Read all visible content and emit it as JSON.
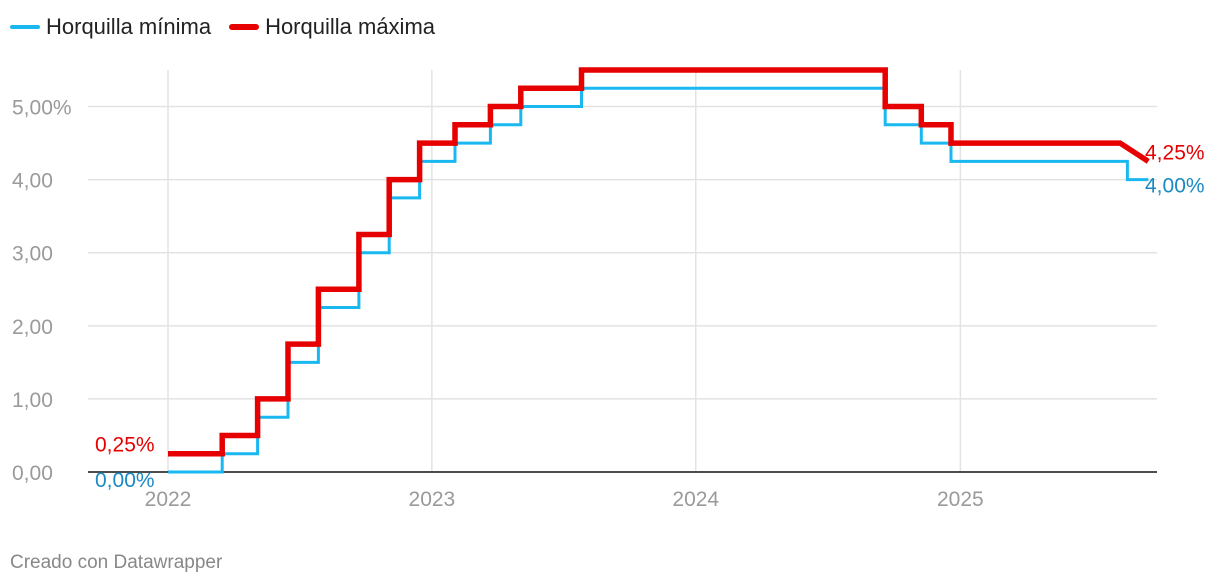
{
  "chart_data": {
    "type": "line",
    "title": "",
    "xlabel": "",
    "ylabel": "",
    "x_tick_labels": [
      "2022",
      "2023",
      "2024",
      "2025"
    ],
    "y_ticks": [
      0,
      1,
      2,
      3,
      4,
      5
    ],
    "y_tick_labels": [
      "0,00",
      "1,00",
      "2,00",
      "3,00",
      "4,00",
      "5,00%"
    ],
    "ylim": [
      0,
      5.5
    ],
    "xlim": [
      "2022-01-01",
      "2025-09-30"
    ],
    "grid": true,
    "legend_position": "top-left",
    "series": [
      {
        "name": "Horquilla mínima",
        "color": "#1ab8f0",
        "end_label": "4,00%",
        "start_label": "0,00%",
        "label_color": "#1a8ac4",
        "points": [
          [
            "2022-01-01",
            0
          ],
          [
            "2022-03-17",
            0
          ],
          [
            "2022-03-17",
            0.25
          ],
          [
            "2022-05-05",
            0.25
          ],
          [
            "2022-05-05",
            0.75
          ],
          [
            "2022-06-16",
            0.75
          ],
          [
            "2022-06-16",
            1.5
          ],
          [
            "2022-07-28",
            1.5
          ],
          [
            "2022-07-28",
            2.25
          ],
          [
            "2022-09-22",
            2.25
          ],
          [
            "2022-09-22",
            3.0
          ],
          [
            "2022-11-03",
            3.0
          ],
          [
            "2022-11-03",
            3.75
          ],
          [
            "2022-12-15",
            3.75
          ],
          [
            "2022-12-15",
            4.25
          ],
          [
            "2023-02-02",
            4.25
          ],
          [
            "2023-02-02",
            4.5
          ],
          [
            "2023-03-23",
            4.5
          ],
          [
            "2023-03-23",
            4.75
          ],
          [
            "2023-05-04",
            4.75
          ],
          [
            "2023-05-04",
            5.0
          ],
          [
            "2023-07-27",
            5.0
          ],
          [
            "2023-07-27",
            5.25
          ],
          [
            "2024-09-19",
            5.25
          ],
          [
            "2024-09-19",
            4.75
          ],
          [
            "2024-11-08",
            4.75
          ],
          [
            "2024-11-08",
            4.5
          ],
          [
            "2024-12-19",
            4.5
          ],
          [
            "2024-12-19",
            4.25
          ],
          [
            "2025-08-20",
            4.25
          ],
          [
            "2025-08-20",
            4.0
          ],
          [
            "2025-09-18",
            4.0
          ]
        ]
      },
      {
        "name": "Horquilla máxima",
        "color": "#e60000",
        "end_label": "4,25%",
        "start_label": "0,25%",
        "label_color": "#e60000",
        "points": [
          [
            "2022-01-01",
            0.25
          ],
          [
            "2022-03-17",
            0.25
          ],
          [
            "2022-03-17",
            0.5
          ],
          [
            "2022-05-05",
            0.5
          ],
          [
            "2022-05-05",
            1.0
          ],
          [
            "2022-06-16",
            1.0
          ],
          [
            "2022-06-16",
            1.75
          ],
          [
            "2022-07-28",
            1.75
          ],
          [
            "2022-07-28",
            2.5
          ],
          [
            "2022-09-22",
            2.5
          ],
          [
            "2022-09-22",
            3.25
          ],
          [
            "2022-11-03",
            3.25
          ],
          [
            "2022-11-03",
            4.0
          ],
          [
            "2022-12-15",
            4.0
          ],
          [
            "2022-12-15",
            4.5
          ],
          [
            "2023-02-02",
            4.5
          ],
          [
            "2023-02-02",
            4.75
          ],
          [
            "2023-03-23",
            4.75
          ],
          [
            "2023-03-23",
            5.0
          ],
          [
            "2023-05-04",
            5.0
          ],
          [
            "2023-05-04",
            5.25
          ],
          [
            "2023-07-27",
            5.25
          ],
          [
            "2023-07-27",
            5.5
          ],
          [
            "2024-09-19",
            5.5
          ],
          [
            "2024-09-19",
            5.0
          ],
          [
            "2024-11-08",
            5.0
          ],
          [
            "2024-11-08",
            4.75
          ],
          [
            "2024-12-19",
            4.75
          ],
          [
            "2024-12-19",
            4.5
          ],
          [
            "2025-08-10",
            4.5
          ],
          [
            "2025-09-18",
            4.25
          ]
        ]
      }
    ]
  },
  "footer": {
    "credit": "Creado con Datawrapper"
  }
}
